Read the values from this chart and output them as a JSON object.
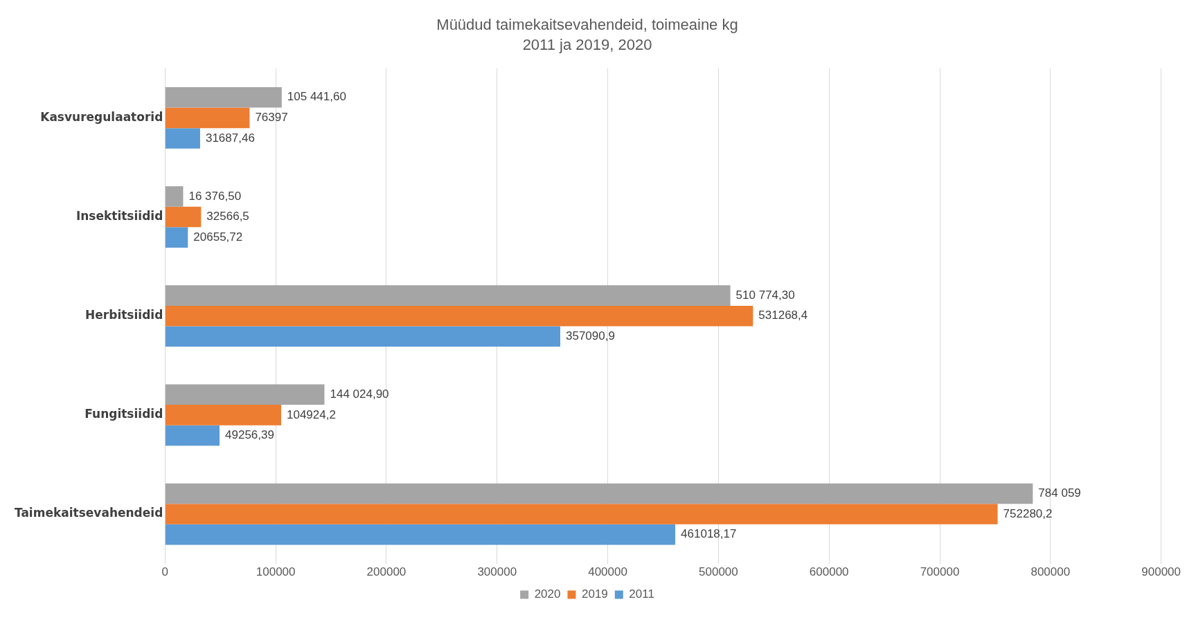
{
  "chart_data": {
    "type": "bar",
    "orientation": "horizontal",
    "title": "Müüdud taimekaitsevahendeid, toimeaine kg",
    "subtitle": "2011 ja 2019, 2020",
    "categories": [
      "Kasvuregulaatorid",
      "Insektitsiidid",
      "Herbitsiidid",
      "Fungitsiidid",
      "Taimekaitsevahendeid"
    ],
    "series": [
      {
        "name": "2020",
        "color": "#a5a5a5",
        "values": [
          105441.6,
          16376.5,
          510774.3,
          144024.9,
          784059
        ],
        "value_labels": [
          "105 441,60",
          "16 376,50",
          "510 774,30",
          "144 024,90",
          "784 059"
        ]
      },
      {
        "name": "2019",
        "color": "#ed7d31",
        "values": [
          76397,
          32566.5,
          531268.4,
          104924.2,
          752280.2
        ],
        "value_labels": [
          "76397",
          "32566,5",
          "531268,4",
          "104924,2",
          "752280,2"
        ]
      },
      {
        "name": "2011",
        "color": "#5b9bd5",
        "values": [
          31687.46,
          20655.72,
          357090.9,
          49256.39,
          461018.17
        ],
        "value_labels": [
          "31687,46",
          "20655,72",
          "357090,9",
          "49256,39",
          "461018,17"
        ]
      }
    ],
    "xlim": [
      0,
      900000
    ],
    "xticks": [
      0,
      100000,
      200000,
      300000,
      400000,
      500000,
      600000,
      700000,
      800000,
      900000
    ],
    "grid": "x",
    "legend": "bottom"
  }
}
